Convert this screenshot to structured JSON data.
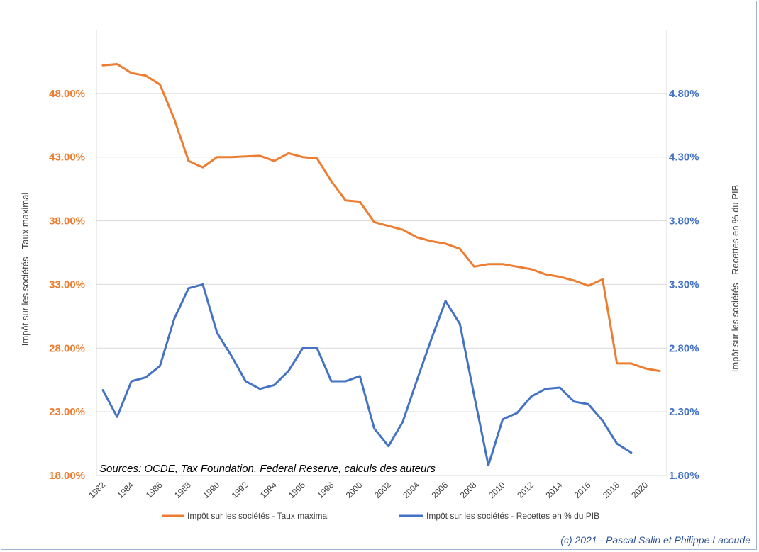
{
  "chart_data": {
    "type": "line",
    "x": [
      1982,
      1983,
      1984,
      1985,
      1986,
      1987,
      1988,
      1989,
      1990,
      1991,
      1992,
      1993,
      1994,
      1995,
      1996,
      1997,
      1998,
      1999,
      2000,
      2001,
      2002,
      2003,
      2004,
      2005,
      2006,
      2007,
      2008,
      2009,
      2010,
      2011,
      2012,
      2013,
      2014,
      2015,
      2016,
      2017,
      2018,
      2019,
      2020,
      2021
    ],
    "x_tick_labels": [
      "1982",
      "1984",
      "1986",
      "1988",
      "1990",
      "1992",
      "1994",
      "1996",
      "1998",
      "2000",
      "2002",
      "2004",
      "2006",
      "2008",
      "2010",
      "2012",
      "2014",
      "2016",
      "2018",
      "2020"
    ],
    "series": [
      {
        "name": "Impôt sur les sociétés - Taux maximal",
        "axis": "left",
        "color": "#ed7d31",
        "values": [
          50.2,
          50.3,
          49.6,
          49.4,
          48.7,
          46.0,
          42.7,
          42.2,
          43.0,
          43.0,
          43.05,
          43.1,
          42.7,
          43.3,
          43.0,
          42.9,
          41.1,
          39.6,
          39.5,
          37.9,
          37.6,
          37.3,
          36.7,
          36.4,
          36.2,
          35.8,
          34.4,
          34.6,
          34.6,
          34.4,
          34.2,
          33.8,
          33.6,
          33.3,
          32.9,
          33.4,
          26.8,
          26.8,
          26.4,
          26.2
        ]
      },
      {
        "name": "Impôt sur les sociétés - Recettes en % du PIB",
        "axis": "right",
        "color": "#4472c4",
        "values": [
          2.47,
          2.26,
          2.54,
          2.57,
          2.66,
          3.03,
          3.27,
          3.3,
          2.92,
          2.74,
          2.54,
          2.48,
          2.51,
          2.62,
          2.8,
          2.8,
          2.54,
          2.54,
          2.58,
          2.17,
          2.03,
          2.22,
          2.55,
          2.87,
          3.17,
          2.99,
          2.43,
          1.88,
          2.24,
          2.29,
          2.42,
          2.48,
          2.49,
          2.38,
          2.36,
          2.23,
          2.05,
          1.98,
          null,
          null
        ]
      }
    ],
    "y_left": {
      "label": "Impôt sur les sociétés - Taux maximal",
      "lim": [
        18,
        53
      ],
      "ticks": [
        18,
        23,
        28,
        33,
        38,
        43,
        48
      ],
      "tick_labels": [
        "18.00%",
        "23.00%",
        "28.00%",
        "33.00%",
        "38.00%",
        "43.00%",
        "48.00%"
      ]
    },
    "y_right": {
      "label": "Impôt sur les sociétés - Recettes en % du PIB",
      "lim": [
        1.8,
        5.3
      ],
      "ticks": [
        1.8,
        2.3,
        2.8,
        3.3,
        3.8,
        4.3,
        4.8
      ],
      "tick_labels": [
        "1.80%",
        "2.30%",
        "2.80%",
        "3.30%",
        "3.80%",
        "4.30%",
        "4.80%"
      ]
    },
    "grid": true,
    "legend_position": "bottom",
    "annotation": "Sources: OCDE, Tax Foundation, Federal Reserve, calculs des auteurs",
    "credit": "(c) 2021 - Pascal Salin et Philippe Lacoude"
  }
}
